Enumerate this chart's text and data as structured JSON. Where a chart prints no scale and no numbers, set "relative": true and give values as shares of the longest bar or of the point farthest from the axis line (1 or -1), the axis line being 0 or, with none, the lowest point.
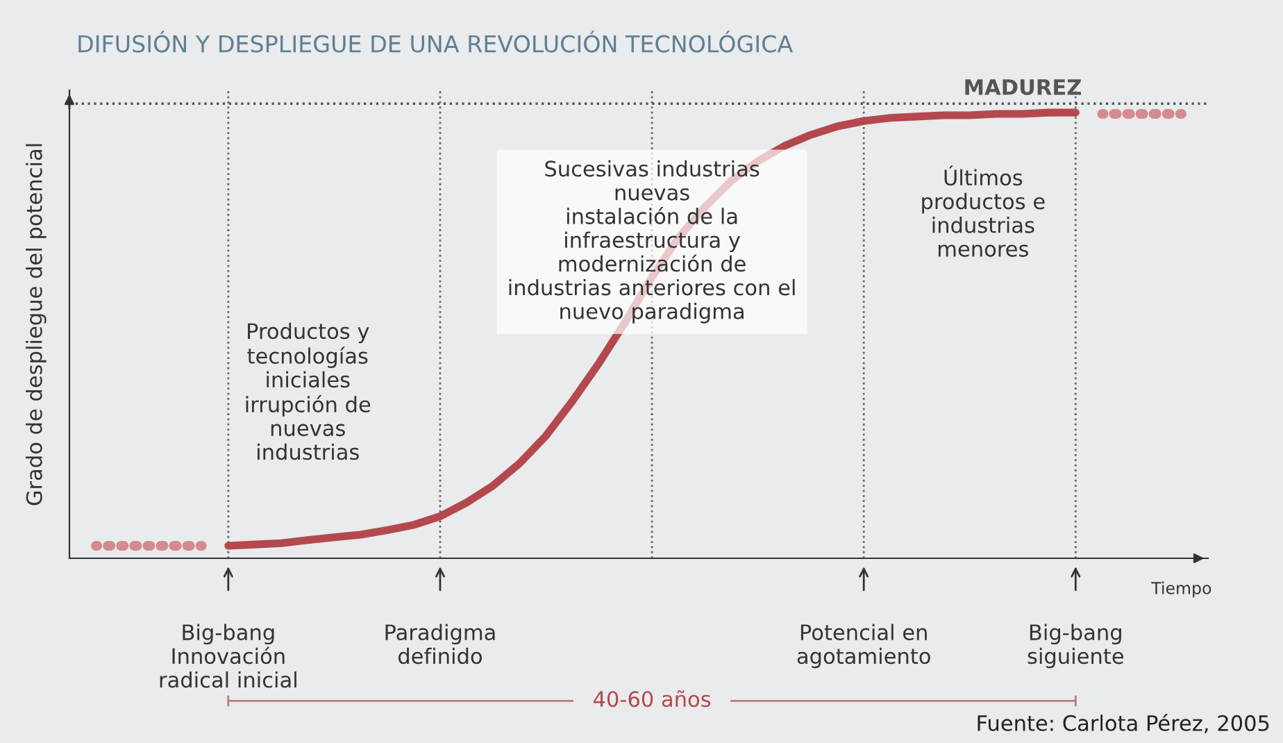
{
  "chart_data": {
    "type": "line",
    "title": "DIFUSIÓN Y DESPLIEGUE DE UNA REVOLUCIÓN TECNOLÓGICA",
    "xlabel": "Tiempo",
    "ylabel": "Grado de despliegue del potencial",
    "relative": true,
    "legend": false,
    "categories": [
      null,
      null,
      null,
      null,
      null,
      "Big-bang\nInnovación\nradical inicial",
      null,
      null,
      null,
      null,
      null,
      null,
      null,
      "Paradigma\ndefinido",
      null,
      null,
      null,
      null,
      null,
      null,
      null,
      null,
      null,
      null,
      null,
      null,
      null,
      null,
      null,
      "Potencial en\nagotamiento",
      null,
      null,
      null,
      null,
      null,
      null,
      null,
      "Big-bang\nsiguiente",
      null,
      null,
      null,
      null
    ],
    "series": [
      {
        "color": "#b5484f",
        "line_style": "solid",
        "values": [
          null,
          null,
          null,
          null,
          null,
          0.028,
          0.031,
          0.034,
          0.041,
          0.047,
          0.053,
          0.063,
          0.075,
          0.094,
          0.125,
          0.163,
          0.213,
          0.275,
          0.353,
          0.438,
          0.531,
          0.631,
          0.719,
          0.788,
          0.847,
          0.891,
          0.925,
          0.95,
          0.969,
          0.981,
          0.988,
          0.991,
          0.994,
          0.994,
          0.997,
          0.997,
          1,
          1,
          null,
          null,
          null,
          null
        ]
      },
      {
        "color": "#d48a8e",
        "line_style": "dotted",
        "values": [
          0.028,
          0.028,
          0.028,
          0.028,
          0.028,
          null,
          null,
          null,
          null,
          null,
          null,
          null,
          null,
          null,
          null,
          null,
          null,
          null,
          null,
          null,
          null,
          null,
          null,
          null,
          null,
          null,
          null,
          null,
          null,
          null,
          null,
          null,
          null,
          null,
          null,
          null,
          null,
          null,
          null,
          null,
          null,
          null
        ]
      },
      {
        "color": "#d48a8e",
        "line_style": "dotted",
        "values": [
          null,
          null,
          null,
          null,
          null,
          null,
          null,
          null,
          null,
          null,
          null,
          null,
          null,
          null,
          null,
          null,
          null,
          null,
          null,
          null,
          null,
          null,
          null,
          null,
          null,
          null,
          null,
          null,
          null,
          null,
          null,
          null,
          null,
          null,
          null,
          null,
          null,
          null,
          0.997,
          0.997,
          0.997,
          0.997
        ]
      }
    ],
    "grid": "x",
    "ref_lines": [
      {
        "axis": "y",
        "value": 1.02,
        "label": "MADUREZ",
        "color": "#555555",
        "line_style": "dotted"
      }
    ],
    "annotations": [
      "Productos y\ntecnologías\niniciales\nirrupción de\nnuevas\nindustrias",
      "Sucesivas industrias\nnuevas\ninstalación de la\ninfraestructura y\nmodernización de\nindustrias anteriores con el\nnuevo paradigma",
      "Últimos\nproductos e\nindustrias\nmenores",
      "40-60 años",
      "Fuente: Carlota Pérez, 2005"
    ]
  }
}
